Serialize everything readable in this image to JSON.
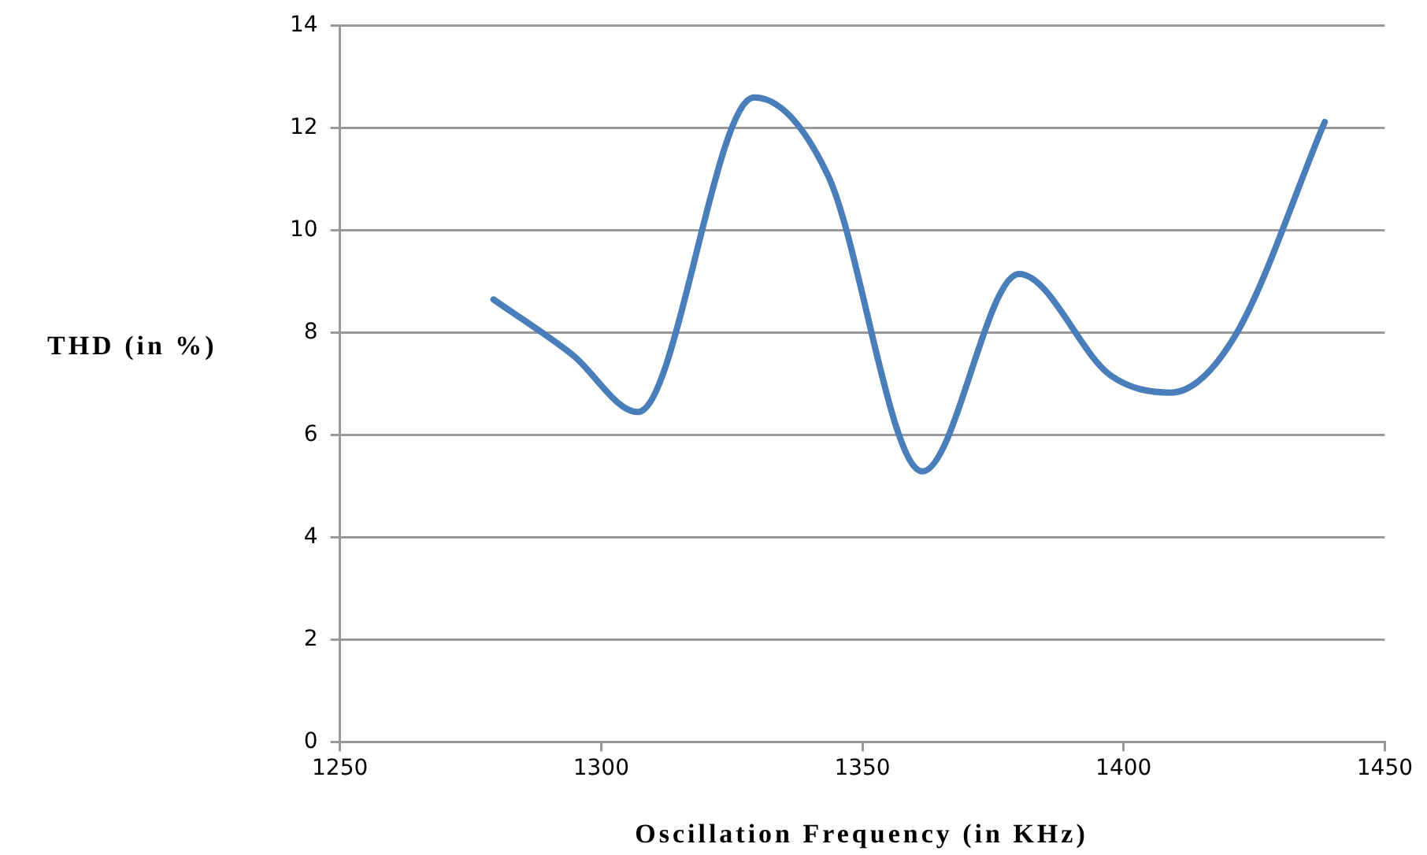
{
  "chart_data": {
    "type": "line",
    "xlabel": "Oscillation Frequency (in KHz)",
    "ylabel": "THD (in %)",
    "x": [
      1279.4,
      1294.5,
      1307,
      1329.3,
      1343.4,
      1361.5,
      1380,
      1397.6,
      1409,
      1421,
      1438.5
    ],
    "series": [
      {
        "color": "#4a7ebb",
        "values": [
          8.65,
          7.57,
          6.45,
          12.6,
          11.08,
          5.29,
          9.15,
          7.16,
          6.83,
          7.88,
          12.12
        ]
      }
    ],
    "xlim": [
      1250,
      1450
    ],
    "xticks": [
      1250,
      1300,
      1350,
      1400,
      1450
    ],
    "ylim": [
      0,
      14
    ],
    "yticks": [
      0,
      2,
      4,
      6,
      8,
      10,
      12,
      14
    ],
    "grid": "y",
    "legend": false,
    "marker": "none",
    "line_style": "solid"
  }
}
